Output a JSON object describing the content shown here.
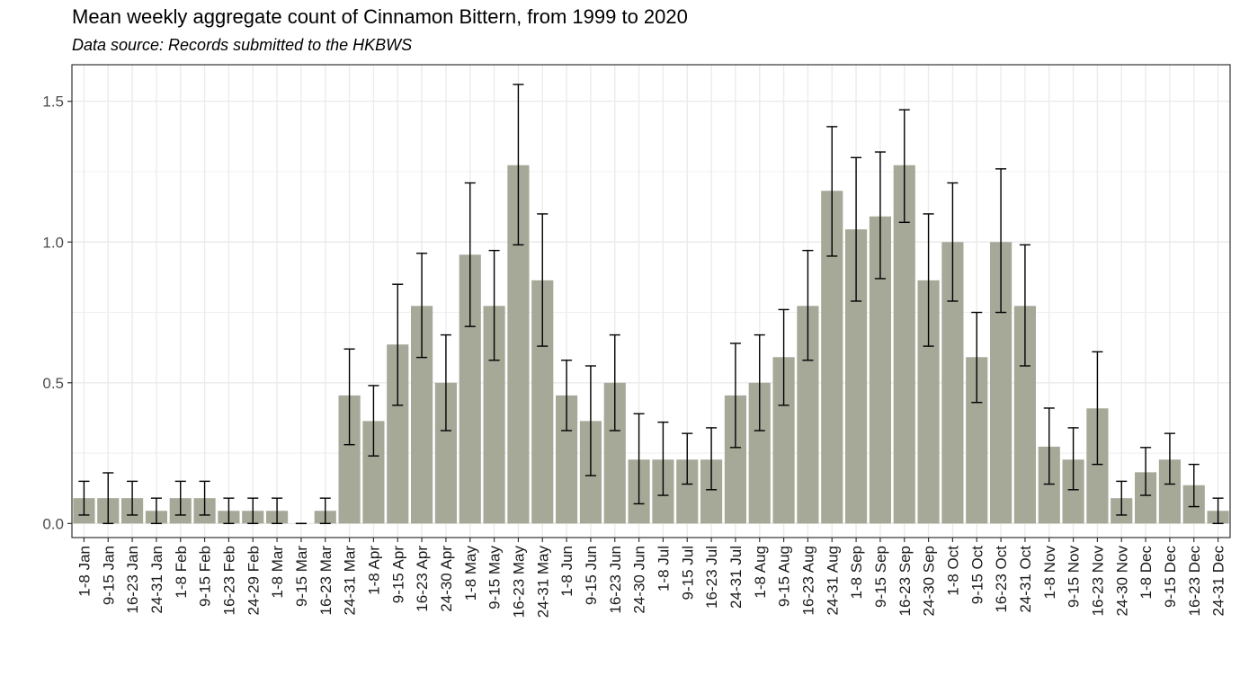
{
  "chart_data": {
    "type": "bar",
    "title": "Mean weekly aggregate count of Cinnamon Bittern, from 1999 to 2020",
    "subtitle": "Data source: Records submitted to the HKBWS",
    "xlabel": "",
    "ylabel": "",
    "ylim": [
      -0.05,
      1.63
    ],
    "yticks": [
      0.0,
      0.5,
      1.0,
      1.5
    ],
    "ytick_labels": [
      "0.0",
      "0.5",
      "1.0",
      "1.5"
    ],
    "grid": true,
    "colors": {
      "bar": "#a6a898",
      "error_bar": "#000000",
      "grid": "#ebebeb",
      "panel_border": "#333333"
    },
    "categories": [
      "1-8 Jan",
      "9-15 Jan",
      "16-23 Jan",
      "24-31 Jan",
      "1-8 Feb",
      "9-15 Feb",
      "16-23 Feb",
      "24-29 Feb",
      "1-8 Mar",
      "9-15 Mar",
      "16-23 Mar",
      "24-31 Mar",
      "1-8 Apr",
      "9-15 Apr",
      "16-23 Apr",
      "24-30 Apr",
      "1-8 May",
      "9-15 May",
      "16-23 May",
      "24-31 May",
      "1-8 Jun",
      "9-15 Jun",
      "16-23 Jun",
      "24-30 Jun",
      "1-8 Jul",
      "9-15 Jul",
      "16-23 Jul",
      "24-31 Jul",
      "1-8 Aug",
      "9-15 Aug",
      "16-23 Aug",
      "24-31 Aug",
      "1-8 Sep",
      "9-15 Sep",
      "16-23 Sep",
      "24-30 Sep",
      "1-8 Oct",
      "9-15 Oct",
      "16-23 Oct",
      "24-31 Oct",
      "1-8 Nov",
      "9-15 Nov",
      "16-23 Nov",
      "24-30 Nov",
      "1-8 Dec",
      "9-15 Dec",
      "16-23 Dec",
      "24-31 Dec"
    ],
    "values": [
      0.09,
      0.09,
      0.09,
      0.045,
      0.09,
      0.09,
      0.045,
      0.045,
      0.045,
      0.0,
      0.045,
      0.455,
      0.364,
      0.636,
      0.773,
      0.5,
      0.955,
      0.773,
      1.273,
      0.864,
      0.455,
      0.364,
      0.5,
      0.227,
      0.227,
      0.227,
      0.227,
      0.455,
      0.5,
      0.591,
      0.773,
      1.182,
      1.045,
      1.091,
      1.273,
      0.864,
      1.0,
      0.591,
      1.0,
      0.773,
      0.273,
      0.227,
      0.409,
      0.09,
      0.182,
      0.227,
      0.136,
      0.045
    ],
    "error_low": [
      0.03,
      0.0,
      0.03,
      0.0,
      0.03,
      0.03,
      0.0,
      0.0,
      0.0,
      0.0,
      0.0,
      0.28,
      0.24,
      0.42,
      0.59,
      0.33,
      0.7,
      0.58,
      0.99,
      0.63,
      0.33,
      0.17,
      0.33,
      0.07,
      0.1,
      0.14,
      0.12,
      0.27,
      0.33,
      0.42,
      0.58,
      0.95,
      0.79,
      0.87,
      1.07,
      0.63,
      0.79,
      0.43,
      0.75,
      0.56,
      0.14,
      0.12,
      0.21,
      0.03,
      0.1,
      0.14,
      0.06,
      0.0
    ],
    "error_high": [
      0.15,
      0.18,
      0.15,
      0.09,
      0.15,
      0.15,
      0.09,
      0.09,
      0.09,
      0.0,
      0.09,
      0.62,
      0.49,
      0.85,
      0.96,
      0.67,
      1.21,
      0.97,
      1.56,
      1.1,
      0.58,
      0.56,
      0.67,
      0.39,
      0.36,
      0.32,
      0.34,
      0.64,
      0.67,
      0.76,
      0.97,
      1.41,
      1.3,
      1.32,
      1.47,
      1.1,
      1.21,
      0.75,
      1.26,
      0.99,
      0.41,
      0.34,
      0.61,
      0.15,
      0.27,
      0.32,
      0.21,
      0.09
    ]
  }
}
